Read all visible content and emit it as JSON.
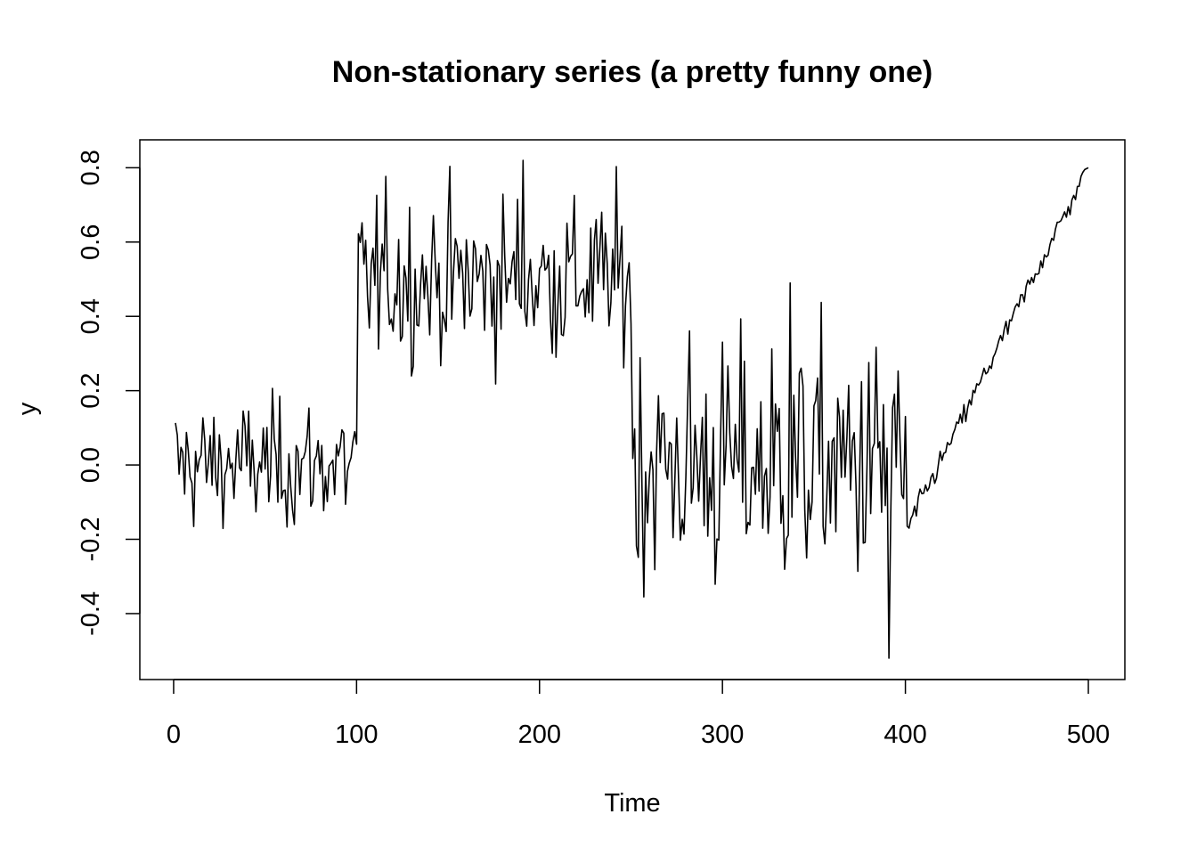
{
  "chart_data": {
    "type": "line",
    "title": "Non-stationary series (a pretty funny one)",
    "xlabel": "Time",
    "ylabel": "y",
    "xlim": [
      1,
      500
    ],
    "ylim": [
      -0.52,
      0.82
    ],
    "x_ticks": [
      0,
      100,
      200,
      300,
      400,
      500
    ],
    "y_ticks": [
      -0.4,
      -0.2,
      0.0,
      0.2,
      0.4,
      0.6,
      0.8
    ],
    "x_tick_labels": [
      "0",
      "100",
      "200",
      "300",
      "400",
      "500"
    ],
    "y_tick_labels": [
      "-0.4",
      "-0.2",
      "0.0",
      "0.2",
      "0.4",
      "0.6",
      "0.8"
    ],
    "grid": false,
    "legend": false,
    "line_color": "#000000",
    "segments": [
      {
        "x_start": 1,
        "x_end": 100,
        "mean": 0.0,
        "noise_sd": 0.085,
        "behavior": "stationary noise"
      },
      {
        "x_start": 101,
        "x_end": 250,
        "mean": 0.5,
        "noise_sd": 0.11,
        "behavior": "level shift"
      },
      {
        "x_start": 251,
        "x_end": 400,
        "mean": 0.0,
        "noise_sd": 0.17,
        "behavior": "higher variance"
      },
      {
        "x_start": 401,
        "x_end": 500,
        "start_value": -0.17,
        "end_value": 0.8,
        "noise_sd": 0.015,
        "behavior": "linear trend"
      }
    ],
    "key_points": [
      {
        "x": 191,
        "y": 0.82
      },
      {
        "x": 337,
        "y": 0.49
      },
      {
        "x": 391,
        "y": -0.52
      },
      {
        "x": 402,
        "y": -0.17
      },
      {
        "x": 500,
        "y": 0.8
      }
    ]
  }
}
